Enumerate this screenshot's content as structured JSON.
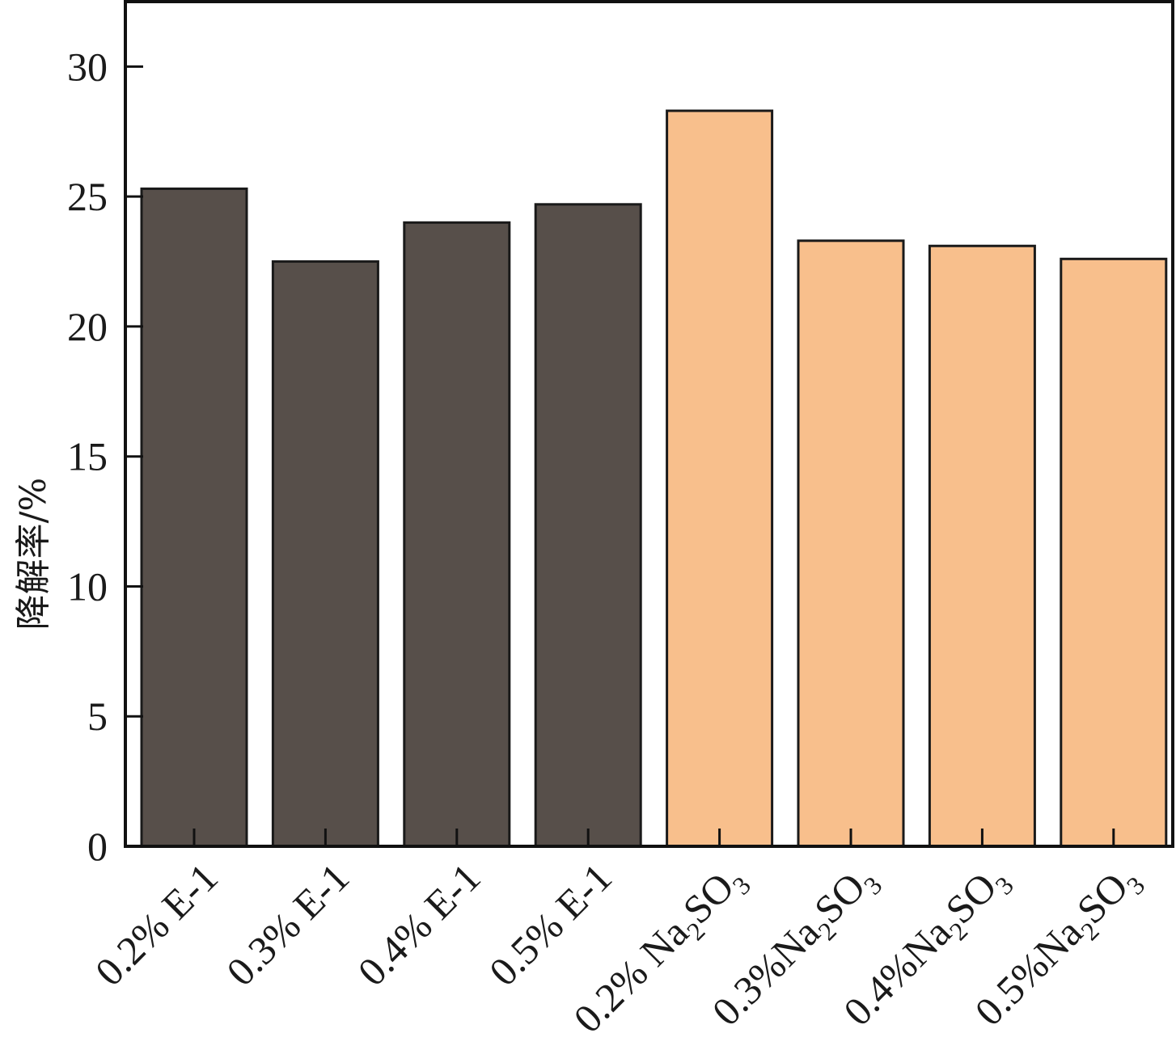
{
  "chart_data": {
    "type": "bar",
    "title": "",
    "xlabel": "",
    "ylabel": "降解率/%",
    "ylim": [
      0,
      32.5
    ],
    "yticks": [
      0,
      5,
      10,
      15,
      20,
      25,
      30
    ],
    "grid": false,
    "categories": [
      "0.2% E-1",
      "0.3% E-1",
      "0.4% E-1",
      "0.5% E-1",
      "0.2% Na2SO3",
      "0.3%Na2SO3",
      "0.4%Na2SO3",
      "0.5%Na2SO3"
    ],
    "category_labels": [
      {
        "prefix": "0.2% E-1",
        "sub1": "",
        "mid": "",
        "sub2": ""
      },
      {
        "prefix": "0.3% E-1",
        "sub1": "",
        "mid": "",
        "sub2": ""
      },
      {
        "prefix": "0.4% E-1",
        "sub1": "",
        "mid": "",
        "sub2": ""
      },
      {
        "prefix": "0.5% E-1",
        "sub1": "",
        "mid": "",
        "sub2": ""
      },
      {
        "prefix": "0.2% Na",
        "sub1": "2",
        "mid": "SO",
        "sub2": "3"
      },
      {
        "prefix": "0.3%Na",
        "sub1": "2",
        "mid": "SO",
        "sub2": "3"
      },
      {
        "prefix": "0.4%Na",
        "sub1": "2",
        "mid": "SO",
        "sub2": "3"
      },
      {
        "prefix": "0.5%Na",
        "sub1": "2",
        "mid": "SO",
        "sub2": "3"
      }
    ],
    "values": [
      25.3,
      22.5,
      24.0,
      24.7,
      28.3,
      23.3,
      23.1,
      22.6
    ],
    "bar_colors": [
      "#574f4a",
      "#574f4a",
      "#574f4a",
      "#574f4a",
      "#f8bf8c",
      "#f8bf8c",
      "#f8bf8c",
      "#f8bf8c"
    ]
  }
}
